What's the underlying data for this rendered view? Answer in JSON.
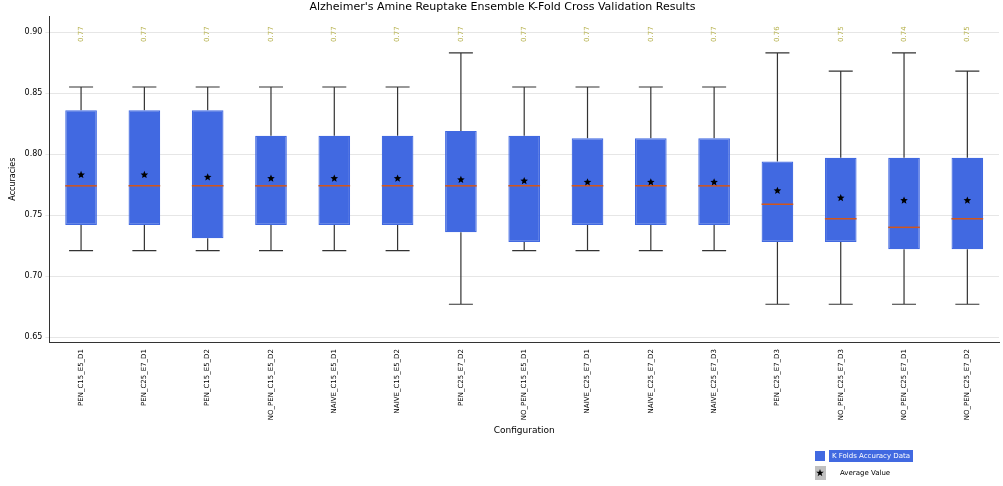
{
  "chart_data": {
    "type": "box",
    "title": "Alzheimer's Amine Reuptake Ensemble K-Fold Cross Validation Results",
    "xlabel": "Configuration",
    "ylabel": "Accuracies",
    "categories": [
      "PEN_C15_E5_D1",
      "PEN_C25_E7_D1",
      "PEN_C15_E5_D2",
      "NO_PEN_C15_E5_D2",
      "NAIVE_C15_E5_D1",
      "NAIVE_C15_E5_D2",
      "PEN_C25_E7_D2",
      "NO_PEN_C15_E5_D1",
      "NAIVE_C25_E7_D1",
      "NAIVE_C25_E7_D2",
      "NAIVE_C25_E7_D3",
      "PEN_C25_E7_D3",
      "NO_PEN_C25_E7_D3",
      "NO_PEN_C25_E7_D1",
      "NO_PEN_C25_E7_D2"
    ],
    "series": [
      {
        "name": "K Folds Accuracy Data",
        "color": "#4169e1",
        "boxes": [
          {
            "low": 0.721,
            "q1": 0.742,
            "median": 0.774,
            "q3": 0.836,
            "high": 0.855
          },
          {
            "low": 0.721,
            "q1": 0.742,
            "median": 0.774,
            "q3": 0.836,
            "high": 0.855
          },
          {
            "low": 0.721,
            "q1": 0.731,
            "median": 0.774,
            "q3": 0.836,
            "high": 0.855
          },
          {
            "low": 0.721,
            "q1": 0.742,
            "median": 0.774,
            "q3": 0.815,
            "high": 0.855
          },
          {
            "low": 0.721,
            "q1": 0.742,
            "median": 0.774,
            "q3": 0.815,
            "high": 0.855
          },
          {
            "low": 0.721,
            "q1": 0.742,
            "median": 0.774,
            "q3": 0.815,
            "high": 0.855
          },
          {
            "low": 0.677,
            "q1": 0.736,
            "median": 0.774,
            "q3": 0.819,
            "high": 0.883
          },
          {
            "low": 0.721,
            "q1": 0.728,
            "median": 0.774,
            "q3": 0.815,
            "high": 0.855
          },
          {
            "low": 0.721,
            "q1": 0.742,
            "median": 0.774,
            "q3": 0.813,
            "high": 0.855
          },
          {
            "low": 0.721,
            "q1": 0.742,
            "median": 0.774,
            "q3": 0.813,
            "high": 0.855
          },
          {
            "low": 0.721,
            "q1": 0.742,
            "median": 0.774,
            "q3": 0.813,
            "high": 0.855
          },
          {
            "low": 0.677,
            "q1": 0.728,
            "median": 0.759,
            "q3": 0.794,
            "high": 0.883
          },
          {
            "low": 0.677,
            "q1": 0.728,
            "median": 0.747,
            "q3": 0.797,
            "high": 0.868
          },
          {
            "low": 0.677,
            "q1": 0.722,
            "median": 0.74,
            "q3": 0.797,
            "high": 0.883
          },
          {
            "low": 0.677,
            "q1": 0.722,
            "median": 0.747,
            "q3": 0.797,
            "high": 0.868
          }
        ]
      },
      {
        "name": "Average Value",
        "type": "scatter",
        "color": "#000000",
        "marker": "star",
        "x": [
          "PEN_C15_E5_D1",
          "PEN_C25_E7_D1",
          "PEN_C15_E5_D2",
          "NO_PEN_C15_E5_D2",
          "NAIVE_C15_E5_D1",
          "NAIVE_C15_E5_D2",
          "PEN_C25_E7_D2",
          "NO_PEN_C15_E5_D1",
          "NAIVE_C25_E7_D1",
          "NAIVE_C25_E7_D2",
          "NAIVE_C25_E7_D3",
          "PEN_C25_E7_D3",
          "NO_PEN_C25_E7_D3",
          "NO_PEN_C25_E7_D1",
          "NO_PEN_C25_E7_D2"
        ],
        "values": [
          0.783,
          0.783,
          0.781,
          0.78,
          0.78,
          0.78,
          0.779,
          0.778,
          0.777,
          0.777,
          0.777,
          0.77,
          0.764,
          0.762,
          0.762
        ]
      }
    ],
    "annotations": [
      "0.77",
      "0.77",
      "0.77",
      "0.77",
      "0.77",
      "0.77",
      "0.77",
      "0.77",
      "0.77",
      "0.77",
      "0.77",
      "0.76",
      "0.75",
      "0.74",
      "0.75"
    ],
    "ylim": [
      0.646,
      0.913
    ],
    "yticks": [
      {
        "value": 0.65,
        "label": "0.65"
      },
      {
        "value": 0.7,
        "label": "0.70"
      },
      {
        "value": 0.75,
        "label": "0.75"
      },
      {
        "value": 0.8,
        "label": "0.80"
      },
      {
        "value": 0.85,
        "label": "0.85"
      },
      {
        "value": 0.9,
        "label": "0.90"
      }
    ],
    "grid": "y",
    "legend": "bottom right"
  }
}
